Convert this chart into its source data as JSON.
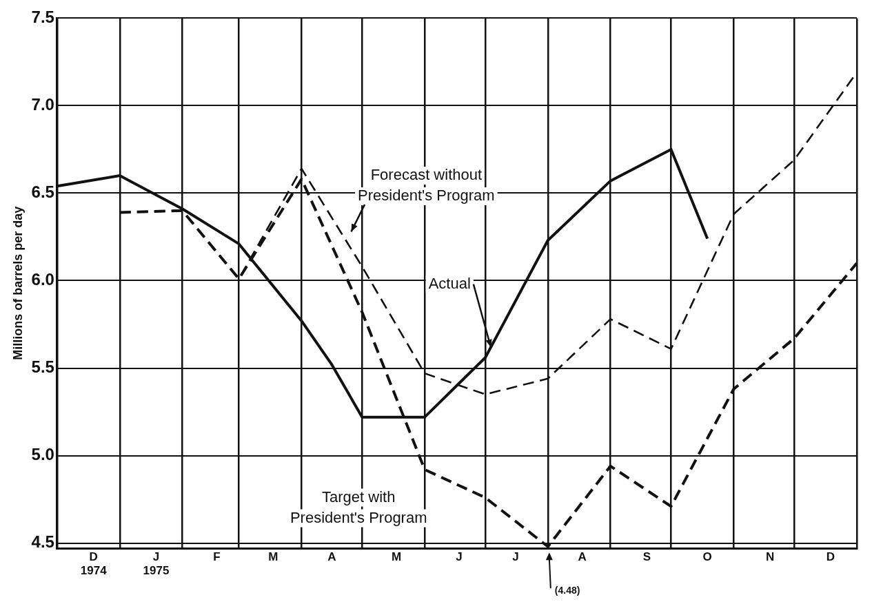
{
  "chart_data": {
    "type": "line",
    "ylabel": "Millions of barrels per day",
    "series": [
      {
        "name": "Actual",
        "color": "#111111",
        "line_style": "solid",
        "x": [
          "1974-12-01",
          "1975-01-01",
          "1975-02-01",
          "1975-03-01",
          "1975-04-01",
          "1975-04-16",
          "1975-05-01",
          "1975-06-01",
          "1975-07-01",
          "1975-08-01",
          "1975-09-01",
          "1975-10-01",
          "1975-10-19"
        ],
        "values": [
          6.54,
          6.6,
          6.41,
          6.21,
          5.77,
          5.52,
          5.22,
          5.22,
          5.56,
          6.23,
          6.57,
          6.75,
          6.24
        ]
      },
      {
        "name": "Forecast without\nPresident's Program",
        "color": "#111111",
        "line_style": "dashed",
        "x": [
          "1975-01-01",
          "1975-02-01",
          "1975-03-01",
          "1975-04-01",
          "1975-05-01",
          "1975-06-01",
          "1975-07-01",
          "1975-08-01",
          "1975-09-01",
          "1975-10-01",
          "1975-11-01",
          "1975-12-01",
          "1976-01-01"
        ],
        "values": [
          6.39,
          6.4,
          6.01,
          6.64,
          6.08,
          5.47,
          5.35,
          5.44,
          5.78,
          5.61,
          6.38,
          6.69,
          7.19
        ]
      },
      {
        "name": "Target with\nPresident's Program",
        "color": "#111111",
        "line_style": "dashed",
        "x": [
          "1975-01-01",
          "1975-02-01",
          "1975-03-01",
          "1975-04-01",
          "1975-05-01",
          "1975-06-01",
          "1975-07-01",
          "1975-08-01",
          "1975-09-01",
          "1975-10-01",
          "1975-11-01",
          "1975-12-01",
          "1976-01-01"
        ],
        "values": [
          6.39,
          6.4,
          6.01,
          6.58,
          5.82,
          4.92,
          4.76,
          4.48,
          4.94,
          4.71,
          5.38,
          5.67,
          6.1
        ]
      }
    ],
    "xlim": [
      "1974-12-01",
      "1976-01-01"
    ],
    "xticks": [
      {
        "value": "1974-12-01",
        "label": null
      },
      {
        "value": "1974-12-19",
        "label": "D\n1974"
      },
      {
        "value": "1975-01-01",
        "label": null
      },
      {
        "value": "1975-01-19",
        "label": "J\n1975"
      },
      {
        "value": "1975-02-01",
        "label": null
      },
      {
        "value": "1975-02-18",
        "label": "F"
      },
      {
        "value": "1975-03-01",
        "label": null
      },
      {
        "value": "1975-03-18",
        "label": "M"
      },
      {
        "value": "1975-04-01",
        "label": null
      },
      {
        "value": "1975-04-16",
        "label": "A"
      },
      {
        "value": "1975-05-01",
        "label": null
      },
      {
        "value": "1975-05-18",
        "label": "M"
      },
      {
        "value": "1975-06-01",
        "label": null
      },
      {
        "value": "1975-06-18",
        "label": "J"
      },
      {
        "value": "1975-07-01",
        "label": null
      },
      {
        "value": "1975-07-16",
        "label": "J"
      },
      {
        "value": "1975-08-01",
        "label": null
      },
      {
        "value": "1975-08-18",
        "label": "A"
      },
      {
        "value": "1975-09-01",
        "label": null
      },
      {
        "value": "1975-09-19",
        "label": "S"
      },
      {
        "value": "1975-10-01",
        "label": null
      },
      {
        "value": "1975-10-19",
        "label": "O"
      },
      {
        "value": "1975-11-01",
        "label": null
      },
      {
        "value": "1975-11-19",
        "label": "N"
      },
      {
        "value": "1975-12-01",
        "label": null
      },
      {
        "value": "1975-12-19",
        "label": "D"
      },
      {
        "value": "1976-01-01",
        "label": null
      }
    ],
    "ylim": [
      4.47,
      7.5
    ],
    "yticks": [
      4.5,
      {
        "value": 5,
        "label": "5.0"
      },
      5.5,
      {
        "value": 6,
        "label": "6.0"
      },
      6.5,
      {
        "value": 7,
        "label": "7.0"
      },
      7.5
    ],
    "grid": true,
    "legend": false,
    "marker": "none",
    "annotations": [
      "(4.48)"
    ]
  }
}
